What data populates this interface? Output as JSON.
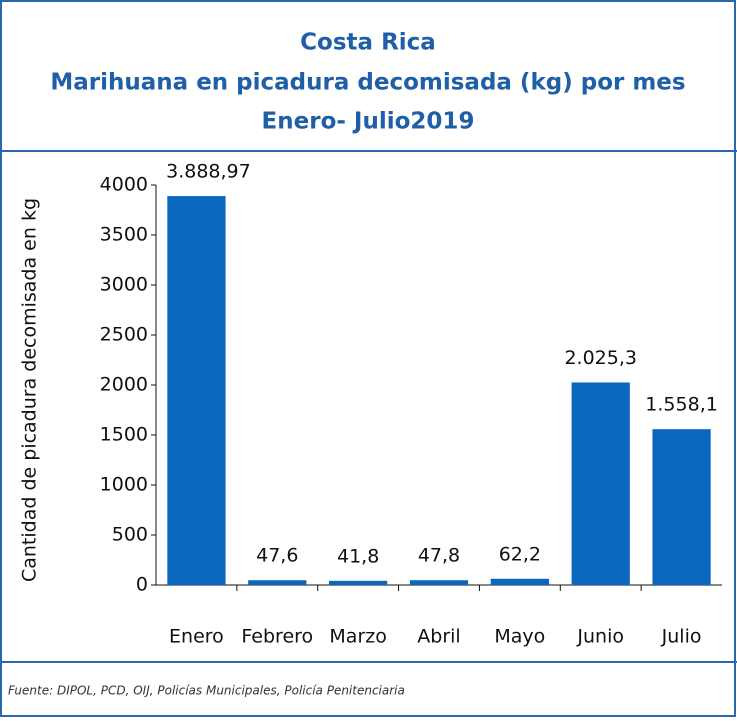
{
  "chart_data": {
    "type": "bar",
    "title_lines": [
      "Costa Rica",
      "Marihuana en picadura decomisada (kg) por mes",
      "Enero- Julio2019"
    ],
    "y_label": "Cantidad de picadura decomisada en kg",
    "categories": [
      "Enero",
      "Febrero",
      "Marzo",
      "Abril",
      "Mayo",
      "Junio",
      "Julio"
    ],
    "values": [
      3888.97,
      47.6,
      41.8,
      47.8,
      62.2,
      2025.3,
      1558.1
    ],
    "value_labels": [
      "3.888,97",
      "47,6",
      "41,8",
      "47,8",
      "62,2",
      "2.025,3",
      "1.558,1"
    ],
    "color": "#0a67bd",
    "ylim": [
      0,
      4000
    ],
    "yticks": [
      0,
      500,
      1000,
      1500,
      2000,
      2500,
      3000,
      3500,
      4000
    ],
    "grid": false,
    "source": "Fuente: DIPOL, PCD, OIJ, Policías Municipales, Policía Penitenciaria"
  }
}
